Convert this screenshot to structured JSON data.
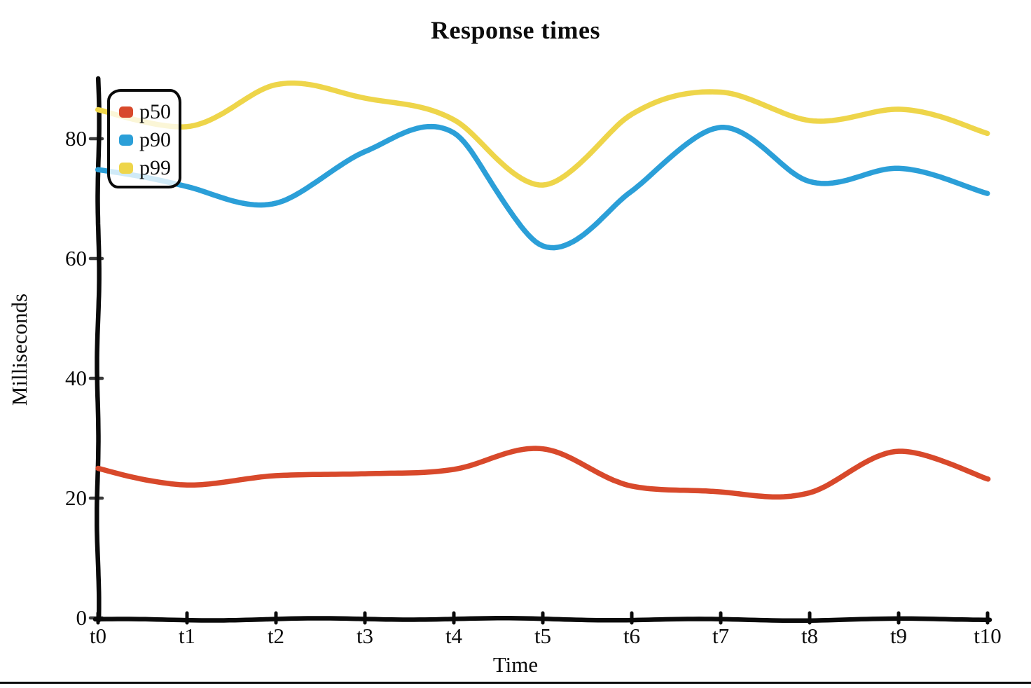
{
  "title": "Response times",
  "axes": {
    "x_label": "Time",
    "y_label": "Milliseconds"
  },
  "legend": [
    {
      "label": "p50",
      "color": "#d8492b"
    },
    {
      "label": "p90",
      "color": "#2b9fd8"
    },
    {
      "label": "p99",
      "color": "#eed54a"
    }
  ],
  "chart_data": {
    "type": "line",
    "title": "Response times",
    "xlabel": "Time",
    "ylabel": "Milliseconds",
    "style": "hand-drawn-xkcd",
    "grid": false,
    "legend_position": "upper-left",
    "x_tick_labels": [
      "t0",
      "t1",
      "t2",
      "t3",
      "t4",
      "t5",
      "t6",
      "t7",
      "t8",
      "t9",
      "t10"
    ],
    "y_ticks": [
      0,
      20,
      40,
      60,
      80
    ],
    "ylim": [
      0,
      92
    ],
    "series": [
      {
        "name": "p50",
        "color": "#d8492b",
        "values": [
          25,
          22,
          24,
          24,
          25,
          28,
          22,
          21,
          21,
          28,
          23
        ]
      },
      {
        "name": "p90",
        "color": "#2b9fd8",
        "values": [
          75,
          72,
          69,
          78,
          81,
          62,
          71,
          82,
          73,
          75,
          71
        ]
      },
      {
        "name": "p99",
        "color": "#eed54a",
        "values": [
          85,
          82,
          89,
          87,
          83,
          72,
          84,
          88,
          83,
          85,
          81
        ]
      }
    ]
  },
  "colors": {
    "axis": "#0a0a0a",
    "background": "#ffffff"
  }
}
